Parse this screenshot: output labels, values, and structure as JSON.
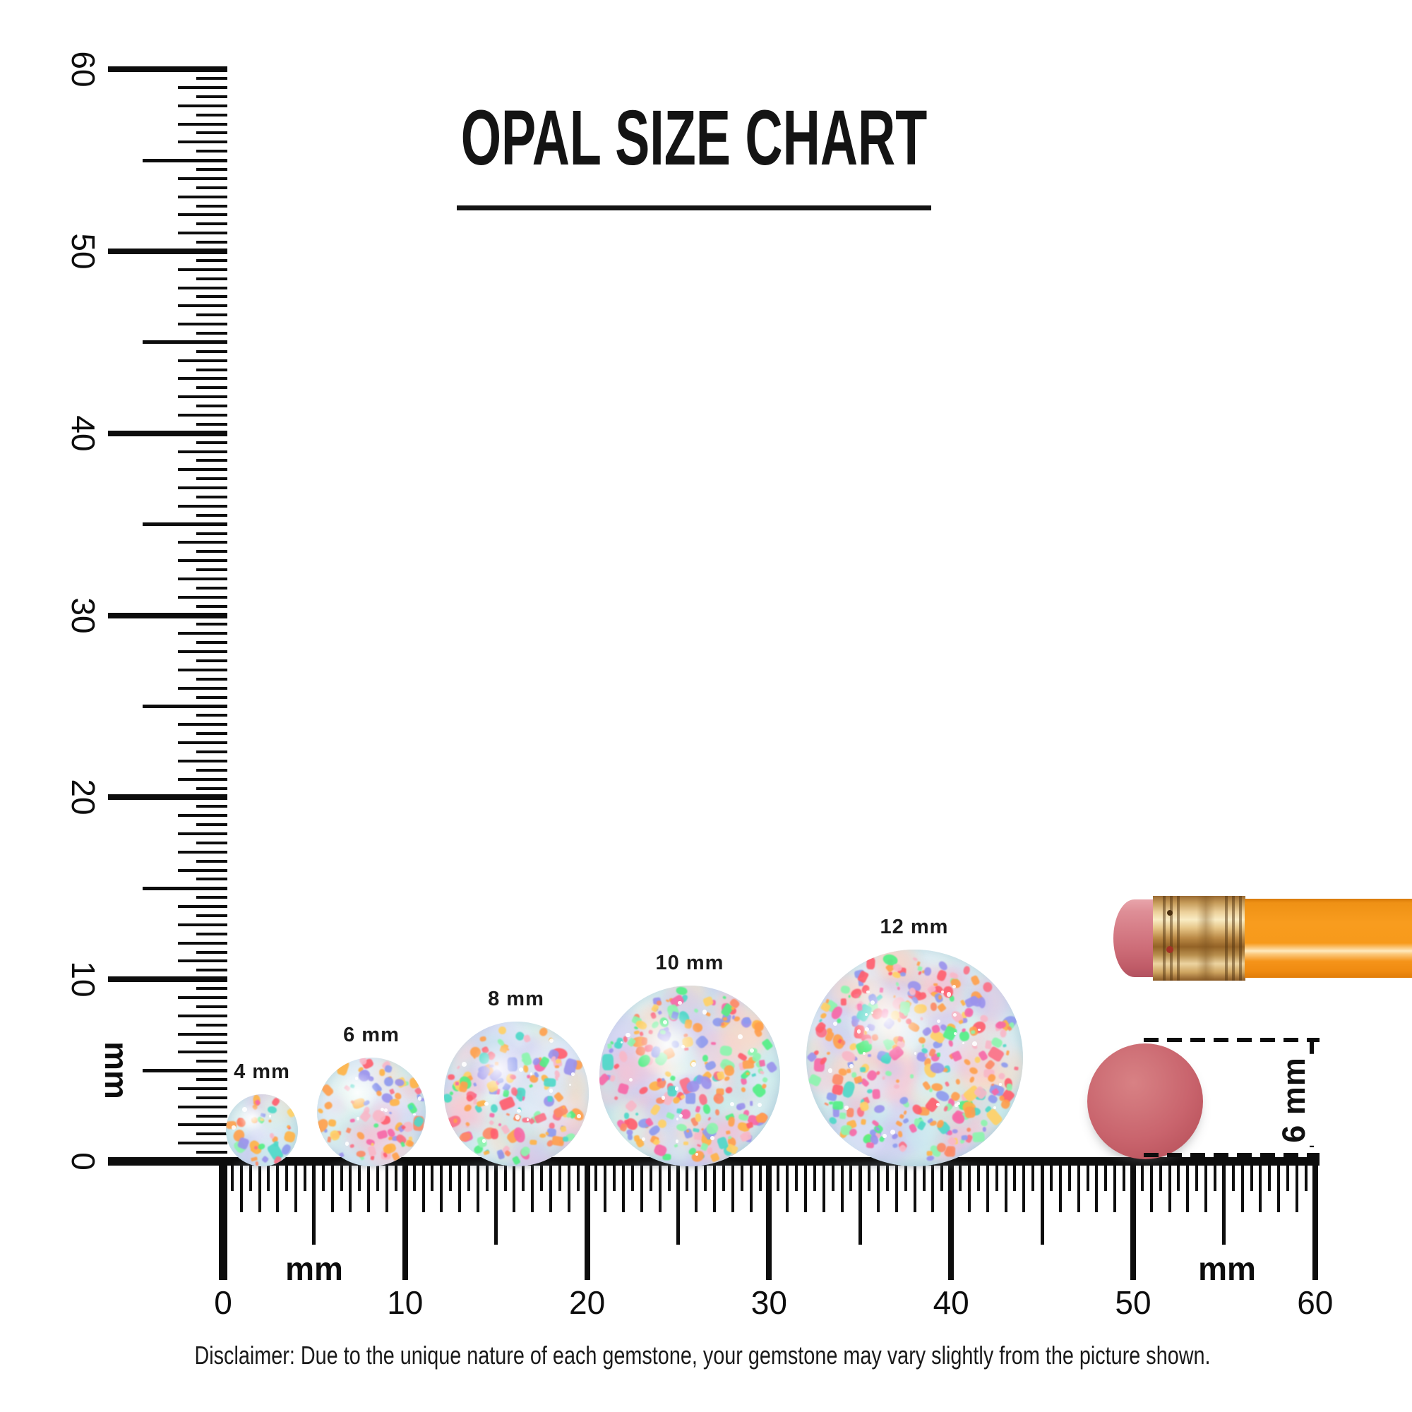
{
  "title": "OPAL SIZE CHART",
  "opals": [
    {
      "label": "4 mm",
      "size_mm": 4
    },
    {
      "label": "6 mm",
      "size_mm": 6
    },
    {
      "label": "8 mm",
      "size_mm": 8
    },
    {
      "label": "10 mm",
      "size_mm": 10
    },
    {
      "label": "12 mm",
      "size_mm": 12
    }
  ],
  "rulers": {
    "unit": "mm",
    "range_mm": [
      0,
      60
    ],
    "minor_step_mm": 0.5,
    "vertical": {
      "unit_label": "mm",
      "tick_numbers": [
        0,
        10,
        20,
        30,
        40,
        50,
        60
      ]
    },
    "horizontal": {
      "unit_label_left": "mm",
      "unit_label_right": "mm",
      "tick_numbers": [
        0,
        10,
        20,
        30,
        40,
        50,
        60
      ]
    }
  },
  "reference_objects": {
    "pencil": {
      "name": "pencil with pink eraser and brass ferrule"
    },
    "red_disc": {
      "dimension_label": "6 mm",
      "diameter_mm": 6
    }
  },
  "disclaimer": "Disclaimer: Due to the unique nature of each gemstone, your gemstone may vary slightly from the picture shown.",
  "colors": {
    "ink": "#0d0d0d",
    "opal_base": "#e7f5f4",
    "opal_confetti": [
      "#ff9f4e",
      "#ffb347",
      "#fc8a66",
      "#fb7187",
      "#f769a8",
      "#53ef86",
      "#8df5ae",
      "#9b93ec",
      "#8f9bee",
      "#ffd166",
      "#4fd8c8",
      "#ff5f6e",
      "#ffa14d",
      "#f8b8c8"
    ],
    "opal_haze": [
      "#bfe9ec",
      "#cdc4f2",
      "#f6c4d4",
      "#d9f2ea",
      "#e3e9fa",
      "#fcd9c4"
    ],
    "disc_red": "#c9646d",
    "pencil_orange": "#f89c1e",
    "eraser_pink": "#d57b85",
    "ferrule_brass": "#e6c587"
  }
}
